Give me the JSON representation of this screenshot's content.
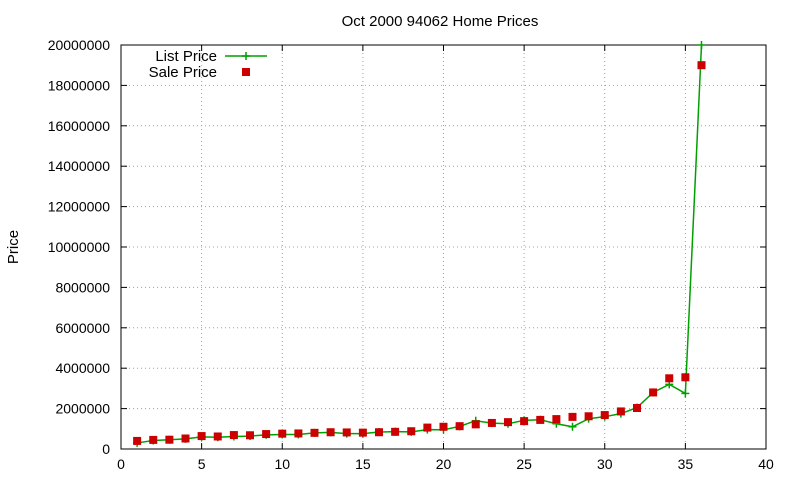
{
  "chart_data": {
    "type": "line",
    "title": "Oct 2000 94062 Home Prices",
    "xlabel": "",
    "ylabel": "Price",
    "xlim": [
      0,
      40
    ],
    "ylim": [
      0,
      20000000
    ],
    "x_ticks": [
      0,
      5,
      10,
      15,
      20,
      25,
      30,
      35,
      40
    ],
    "y_ticks": [
      0,
      2000000,
      4000000,
      6000000,
      8000000,
      10000000,
      12000000,
      14000000,
      16000000,
      18000000,
      20000000
    ],
    "grid": true,
    "legend_position": "top-left",
    "x": [
      1,
      2,
      3,
      4,
      5,
      6,
      7,
      8,
      9,
      10,
      11,
      12,
      13,
      14,
      15,
      16,
      17,
      18,
      19,
      20,
      21,
      22,
      23,
      24,
      25,
      26,
      27,
      28,
      29,
      30,
      31,
      32,
      33,
      34,
      35,
      36
    ],
    "series": [
      {
        "name": "List Price",
        "style": "line+cross",
        "color": "#00a000",
        "values": [
          300000,
          420000,
          460000,
          500000,
          600000,
          580000,
          620000,
          640000,
          700000,
          720000,
          720000,
          800000,
          820000,
          760000,
          760000,
          840000,
          860000,
          850000,
          960000,
          950000,
          1120000,
          1400000,
          1280000,
          1250000,
          1420000,
          1450000,
          1250000,
          1100000,
          1500000,
          1600000,
          1750000,
          2050000,
          2800000,
          3200000,
          2750000,
          20000000
        ]
      },
      {
        "name": "Sale Price",
        "style": "square",
        "color": "#cc0000",
        "values": [
          400000,
          450000,
          460000,
          520000,
          640000,
          620000,
          690000,
          680000,
          740000,
          760000,
          770000,
          800000,
          830000,
          820000,
          810000,
          830000,
          850000,
          880000,
          1060000,
          1100000,
          1130000,
          1220000,
          1290000,
          1330000,
          1380000,
          1440000,
          1480000,
          1590000,
          1620000,
          1680000,
          1860000,
          2030000,
          2800000,
          3500000,
          3550000,
          19000000
        ]
      }
    ]
  }
}
